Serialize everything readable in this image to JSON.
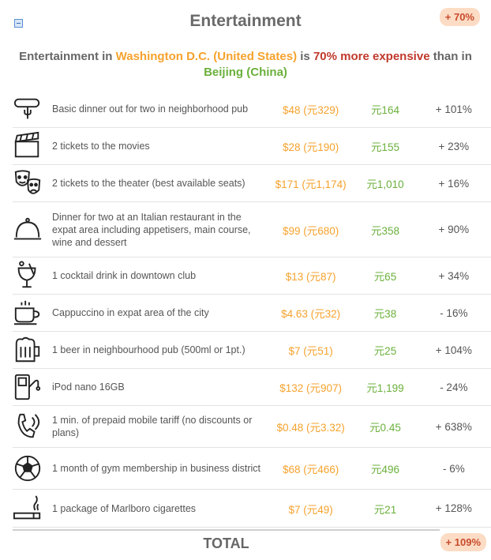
{
  "header": {
    "title": "Entertainment",
    "overall_badge": "+ 70%"
  },
  "summary": {
    "prefix": "Entertainment in",
    "city1": "Washington D.C. (United States)",
    "is": "is",
    "pct": "70% more expensive",
    "than": "than in",
    "city2": "Beijing (China)"
  },
  "rows": [
    {
      "icon": "sausage-fork-icon",
      "label": "Basic dinner out for two in neighborhood pub",
      "price_dc": "$48 (元329)",
      "price_bj": "元164",
      "diff": "+ 101%"
    },
    {
      "icon": "clapperboard-icon",
      "label": "2 tickets to the movies",
      "price_dc": "$28 (元190)",
      "price_bj": "元155",
      "diff": "+ 23%"
    },
    {
      "icon": "theater-masks-icon",
      "label": "2 tickets to the theater (best available seats)",
      "price_dc": "$171 (元1,174)",
      "price_bj": "元1,010",
      "diff": "+ 16%"
    },
    {
      "icon": "cloche-icon",
      "label": "Dinner for two at an Italian restaurant in the expat area including appetisers, main course, wine and dessert",
      "price_dc": "$99 (元680)",
      "price_bj": "元358",
      "diff": "+ 90%"
    },
    {
      "icon": "cocktail-icon",
      "label": "1 cocktail drink in downtown club",
      "price_dc": "$13 (元87)",
      "price_bj": "元65",
      "diff": "+ 34%"
    },
    {
      "icon": "coffee-cup-icon",
      "label": "Cappuccino in expat area of the city",
      "price_dc": "$4.63 (元32)",
      "price_bj": "元38",
      "diff": "- 16%"
    },
    {
      "icon": "beer-mug-icon",
      "label": "1 beer in neighbourhood pub (500ml or 1pt.)",
      "price_dc": "$7 (元51)",
      "price_bj": "元25",
      "diff": "+ 104%"
    },
    {
      "icon": "ipod-icon",
      "label": "iPod nano 16GB",
      "price_dc": "$132 (元907)",
      "price_bj": "元1,199",
      "diff": "- 24%"
    },
    {
      "icon": "phone-call-icon",
      "label": "1 min. of prepaid mobile tariff (no discounts or plans)",
      "price_dc": "$0.48 (元3.32)",
      "price_bj": "元0.45",
      "diff": "+ 638%"
    },
    {
      "icon": "soccer-ball-icon",
      "label": "1 month of gym membership in business district",
      "price_dc": "$68 (元466)",
      "price_bj": "元496",
      "diff": "- 6%"
    },
    {
      "icon": "cigarette-icon",
      "label": "1 package of Marlboro cigarettes",
      "price_dc": "$7 (元49)",
      "price_bj": "元21",
      "diff": "+ 128%"
    }
  ],
  "total": {
    "label": "TOTAL",
    "badge": "+ 109%"
  },
  "colors": {
    "dc_price": "#f6a22d",
    "bj_price": "#6bb03c",
    "expensive": "#c0392b",
    "badge_bg": "#fcdcc4"
  }
}
